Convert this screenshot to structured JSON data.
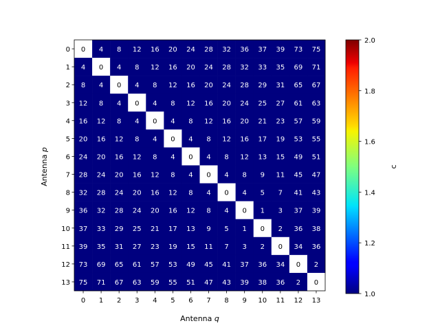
{
  "chart_data": {
    "type": "heatmap",
    "xlabel_prefix": "Antenna ",
    "xlabel_var": "q",
    "ylabel_prefix": "Antenna ",
    "ylabel_var": "p",
    "x_ticks": [
      "0",
      "1",
      "2",
      "3",
      "4",
      "5",
      "6",
      "7",
      "8",
      "9",
      "10",
      "11",
      "12",
      "13"
    ],
    "y_ticks": [
      "0",
      "1",
      "2",
      "3",
      "4",
      "5",
      "6",
      "7",
      "8",
      "9",
      "10",
      "11",
      "12",
      "13"
    ],
    "colorbar": {
      "label": "c",
      "range": [
        1.0,
        2.0
      ],
      "ticks": [
        "1.0",
        "1.2",
        "1.4",
        "1.6",
        "1.8",
        "2.0"
      ],
      "colormap": "jet"
    },
    "cell_colors": {
      "zero": "#ffffff",
      "nonzero": "#00007f"
    },
    "values": [
      [
        0,
        4,
        8,
        12,
        16,
        20,
        24,
        28,
        32,
        36,
        37,
        39,
        73,
        75
      ],
      [
        4,
        0,
        4,
        8,
        12,
        16,
        20,
        24,
        28,
        32,
        33,
        35,
        69,
        71
      ],
      [
        8,
        4,
        0,
        4,
        8,
        12,
        16,
        20,
        24,
        28,
        29,
        31,
        65,
        67
      ],
      [
        12,
        8,
        4,
        0,
        4,
        8,
        12,
        16,
        20,
        24,
        25,
        27,
        61,
        63
      ],
      [
        16,
        12,
        8,
        4,
        0,
        4,
        8,
        12,
        16,
        20,
        21,
        23,
        57,
        59
      ],
      [
        20,
        16,
        12,
        8,
        4,
        0,
        4,
        8,
        12,
        16,
        17,
        19,
        53,
        55
      ],
      [
        24,
        20,
        16,
        12,
        8,
        4,
        0,
        4,
        8,
        12,
        13,
        15,
        49,
        51
      ],
      [
        28,
        24,
        20,
        16,
        12,
        8,
        4,
        0,
        4,
        8,
        9,
        11,
        45,
        47
      ],
      [
        32,
        28,
        24,
        20,
        16,
        12,
        8,
        4,
        0,
        4,
        5,
        7,
        41,
        43
      ],
      [
        36,
        32,
        28,
        24,
        20,
        16,
        12,
        8,
        4,
        0,
        1,
        3,
        37,
        39
      ],
      [
        37,
        33,
        29,
        25,
        21,
        17,
        13,
        9,
        5,
        1,
        0,
        2,
        36,
        38
      ],
      [
        39,
        35,
        31,
        27,
        23,
        19,
        15,
        11,
        7,
        3,
        2,
        0,
        34,
        36
      ],
      [
        73,
        69,
        65,
        61,
        57,
        53,
        49,
        45,
        41,
        37,
        36,
        34,
        0,
        2
      ],
      [
        75,
        71,
        67,
        63,
        59,
        55,
        51,
        47,
        43,
        39,
        38,
        36,
        2,
        0
      ]
    ]
  }
}
